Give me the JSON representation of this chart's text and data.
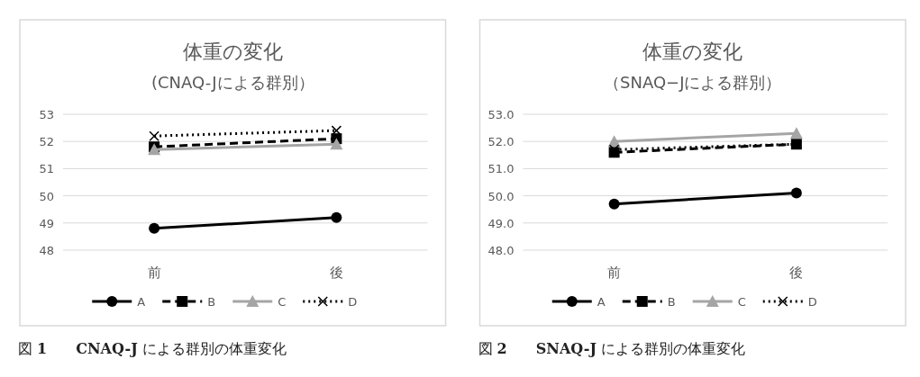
{
  "chart_data": [
    {
      "type": "line",
      "title": "体重の変化",
      "subtitle": "(CNAQ-Jによる群別）",
      "categories": [
        "前",
        "後"
      ],
      "series": [
        {
          "name": "A",
          "color": "#000000",
          "values": [
            48.8,
            49.2
          ],
          "marker": "circle",
          "line_style": "solid"
        },
        {
          "name": "B",
          "color": "#000000",
          "values": [
            51.8,
            52.1
          ],
          "marker": "square",
          "line_style": "dashed"
        },
        {
          "name": "C",
          "color": "#a5a5a5",
          "values": [
            51.7,
            51.9
          ],
          "marker": "triangle",
          "line_style": "solid"
        },
        {
          "name": "D",
          "color": "#000000",
          "values": [
            52.2,
            52.4
          ],
          "marker": "cross",
          "line_style": "dotted"
        }
      ],
      "ylim": [
        48,
        53
      ],
      "yticks": [
        48,
        49,
        50,
        51,
        52,
        53
      ],
      "grid": "y",
      "legend": "bottom",
      "annotations": [
        "図 **1**　　**CNAQ-J** による群別の体重変化"
      ]
    },
    {
      "type": "line",
      "title": "体重の変化",
      "subtitle": "（SNAQ−Jによる群別）",
      "categories": [
        "前",
        "後"
      ],
      "series": [
        {
          "name": "A",
          "color": "#000000",
          "values": [
            49.7,
            50.1
          ],
          "marker": "circle",
          "line_style": "solid"
        },
        {
          "name": "B",
          "color": "#000000",
          "values": [
            51.6,
            51.9
          ],
          "marker": "square",
          "line_style": "dashed"
        },
        {
          "name": "C",
          "color": "#a5a5a5",
          "values": [
            52.0,
            52.3
          ],
          "marker": "triangle",
          "line_style": "solid"
        },
        {
          "name": "D",
          "color": "#000000",
          "values": [
            51.7,
            51.9
          ],
          "marker": "cross",
          "line_style": "dotted"
        }
      ],
      "ylim": [
        48,
        53
      ],
      "yticks": [
        {
          "value": 48,
          "label": "48.0"
        },
        {
          "value": 49,
          "label": "49.0"
        },
        {
          "value": 50,
          "label": "50.0"
        },
        {
          "value": 51,
          "label": "51.0"
        },
        {
          "value": 52,
          "label": "52.0"
        },
        {
          "value": 53,
          "label": "53.0"
        }
      ],
      "grid": "y",
      "legend": "bottom",
      "annotations": [
        "図 **2**　　**SNAQ-J** による群別の体重変化"
      ]
    }
  ]
}
